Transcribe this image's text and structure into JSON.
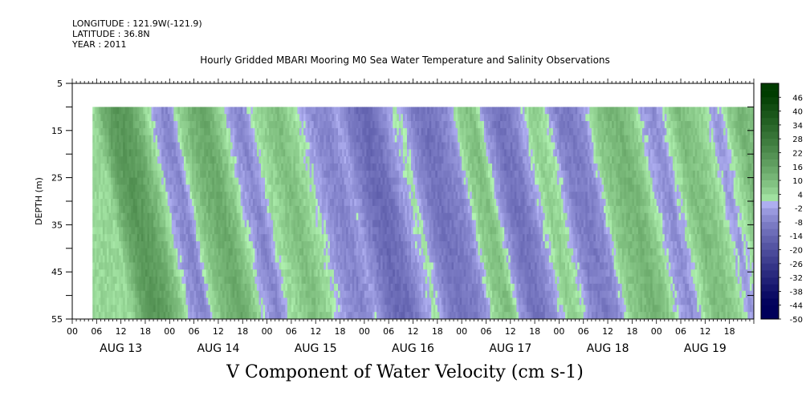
{
  "header": {
    "longitude": "LONGITUDE : 121.9W(-121.9)",
    "latitude": "LATITUDE : 36.8N",
    "year": "YEAR : 2011"
  },
  "title": "Hourly Gridded MBARI Mooring M0 Sea Water Temperature and Salinity Observations",
  "variable_label": "V Component of Water Velocity (cm s-1)",
  "chart_data": {
    "type": "heatmap",
    "ylabel": "DEPTH (m)",
    "ylim": [
      55,
      5
    ],
    "yticks": [
      "5",
      "15",
      "25",
      "35",
      "45",
      "55"
    ],
    "x_hour_labels": [
      "00",
      "06",
      "12",
      "18",
      "00",
      "06",
      "12",
      "18",
      "00",
      "06",
      "12",
      "18",
      "00",
      "06",
      "12",
      "18",
      "00",
      "06",
      "12",
      "18",
      "00",
      "06",
      "12",
      "18",
      "00",
      "06",
      "12",
      "18"
    ],
    "x_day_labels": [
      "AUG 13",
      "AUG 14",
      "AUG 15",
      "AUG 16",
      "AUG 17",
      "AUG 18",
      "AUG 19"
    ],
    "x_range_hours": [
      0,
      168
    ],
    "data_start_hour": 5,
    "data_end_hour": 168,
    "depth_data_range": [
      10,
      55
    ],
    "colorbar_labels": [
      "46",
      "40",
      "34",
      "28",
      "22",
      "16",
      "10",
      "4",
      "-2",
      "-8",
      "-14",
      "-20",
      "-26",
      "-32",
      "-38",
      "-44",
      "-50"
    ],
    "colorbar_range": [
      -50,
      52
    ],
    "color_low": "#00005a",
    "color_zero_neg": "#b4b4f5",
    "color_zero_pos": "#b4f5b4",
    "color_high": "#003c00",
    "profile": {
      "hours": [
        5,
        8,
        11,
        14,
        17,
        20,
        23,
        26,
        29,
        32,
        35,
        38,
        41,
        44,
        47,
        50,
        53,
        56,
        59,
        62,
        65,
        68,
        71,
        74,
        77,
        80,
        83,
        86,
        89,
        92,
        95,
        98,
        101,
        104,
        107,
        110,
        113,
        116,
        119,
        122,
        125,
        128,
        131,
        134,
        137,
        140,
        143,
        146,
        149,
        152,
        155,
        158,
        161,
        164,
        167
      ],
      "v_mean": [
        4,
        16,
        20,
        16,
        8,
        -4,
        -8,
        6,
        12,
        15,
        8,
        -2,
        -8,
        2,
        6,
        10,
        5,
        0,
        -6,
        -8,
        -2,
        -10,
        -14,
        -12,
        -4,
        2,
        -8,
        -12,
        -10,
        -6,
        6,
        10,
        -4,
        -12,
        -10,
        -2,
        6,
        2,
        -8,
        -10,
        -6,
        6,
        10,
        12,
        8,
        -2,
        -6,
        2,
        10,
        8,
        4,
        -4,
        4,
        12,
        8
      ]
    }
  }
}
